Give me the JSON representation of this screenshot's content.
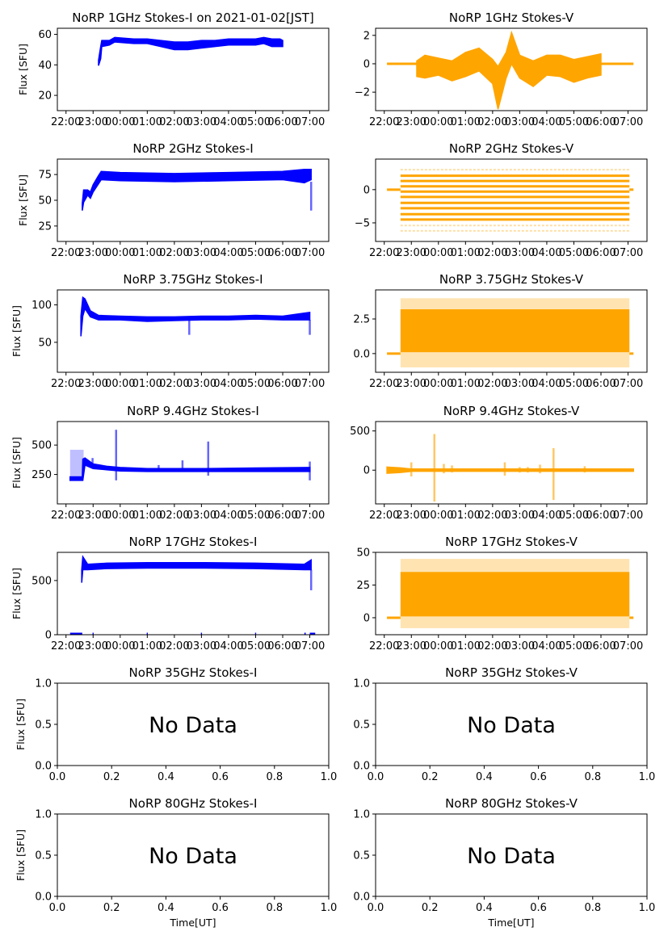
{
  "figure": {
    "ylabel": "Flux [SFU]",
    "xlabel": "Time[UT]",
    "no_data_text": "No Data",
    "colors": {
      "stokes_i": "#0000ff",
      "stokes_v": "#ffa500",
      "axis": "#000000"
    }
  },
  "chart_data": [
    {
      "id": "1ghz-i",
      "type": "scatter",
      "row": 0,
      "col": 0,
      "title": "NoRP 1GHz Stokes-I on 2021-01-02[JST]",
      "ylabel": "Flux [SFU]",
      "xlabel": "",
      "xaxis": "time",
      "xlim": [
        -0.32,
        9.7
      ],
      "xticks": [
        0,
        1,
        2,
        3,
        4,
        5,
        6,
        7,
        8,
        9
      ],
      "xticklabels": [
        "22:00",
        "23:00",
        "00:00",
        "01:00",
        "02:00",
        "03:00",
        "04:00",
        "05:00",
        "06:00",
        "07:00"
      ],
      "ylim": [
        10,
        64
      ],
      "yticks": [
        20,
        40,
        60
      ],
      "yticklabels": [
        "20",
        "40",
        "60"
      ],
      "color": "#0000ff",
      "envelope": [
        [
          1.2,
          39.5,
          43
        ],
        [
          1.28,
          44,
          52
        ],
        [
          1.32,
          52,
          56
        ],
        [
          1.6,
          53,
          56
        ],
        [
          1.8,
          55,
          58
        ],
        [
          2.5,
          54,
          57
        ],
        [
          3.0,
          54,
          57
        ],
        [
          3.5,
          52,
          56
        ],
        [
          4.0,
          50,
          55
        ],
        [
          4.5,
          50,
          55
        ],
        [
          5.0,
          51,
          56
        ],
        [
          5.5,
          52,
          56
        ],
        [
          6.0,
          53,
          57
        ],
        [
          6.5,
          53,
          57
        ],
        [
          7.0,
          53,
          57
        ],
        [
          7.3,
          54,
          58
        ],
        [
          7.6,
          52,
          57
        ],
        [
          7.9,
          52,
          57
        ],
        [
          8.0,
          52,
          56
        ]
      ]
    },
    {
      "id": "1ghz-v",
      "type": "scatter",
      "row": 0,
      "col": 1,
      "title": "NoRP 1GHz Stokes-V",
      "ylabel": "",
      "xlabel": "",
      "xaxis": "time",
      "xlim": [
        -0.32,
        9.7
      ],
      "xticks": [
        0,
        1,
        2,
        3,
        4,
        5,
        6,
        7,
        8,
        9
      ],
      "xticklabels": [
        "22:00",
        "23:00",
        "00:00",
        "01:00",
        "02:00",
        "03:00",
        "04:00",
        "05:00",
        "06:00",
        "07:00"
      ],
      "ylim": [
        -3.3,
        2.5
      ],
      "yticks": [
        -2,
        0,
        2
      ],
      "yticklabels": [
        "−2",
        "0",
        "2"
      ],
      "color": "#ffa500",
      "baseline": {
        "value": 0,
        "x": [
          [
            0.1,
            1.2
          ],
          [
            8.0,
            9.2
          ]
        ]
      },
      "envelope": [
        [
          1.2,
          -0.9,
          0.2
        ],
        [
          1.5,
          -1.0,
          0.6
        ],
        [
          2.0,
          -0.8,
          0.4
        ],
        [
          2.5,
          -1.2,
          0.2
        ],
        [
          3.0,
          -0.9,
          0.8
        ],
        [
          3.5,
          -0.5,
          1.1
        ],
        [
          4.0,
          -1.4,
          0.3
        ],
        [
          4.2,
          -3.2,
          -0.2
        ],
        [
          4.5,
          -1.0,
          0.8
        ],
        [
          4.7,
          0.0,
          2.2
        ],
        [
          5.0,
          -1.0,
          0.6
        ],
        [
          5.5,
          -1.6,
          0.2
        ],
        [
          6.0,
          -0.8,
          0.6
        ],
        [
          6.5,
          -0.9,
          0.6
        ],
        [
          7.0,
          -1.3,
          0.3
        ],
        [
          7.5,
          -1.0,
          0.5
        ],
        [
          8.0,
          -0.8,
          0.7
        ]
      ]
    },
    {
      "id": "2ghz-i",
      "type": "scatter",
      "row": 1,
      "col": 0,
      "title": "NoRP 2GHz Stokes-I",
      "ylabel": "Flux [SFU]",
      "xlabel": "",
      "xaxis": "time",
      "xlim": [
        -0.32,
        9.7
      ],
      "xticks": [
        0,
        1,
        2,
        3,
        4,
        5,
        6,
        7,
        8,
        9
      ],
      "xticklabels": [
        "22:00",
        "23:00",
        "00:00",
        "01:00",
        "02:00",
        "03:00",
        "04:00",
        "05:00",
        "06:00",
        "07:00"
      ],
      "ylim": [
        10,
        90
      ],
      "yticks": [
        25,
        50,
        75
      ],
      "yticklabels": [
        "25",
        "50",
        "75"
      ],
      "color": "#0000ff",
      "envelope": [
        [
          0.6,
          40,
          47
        ],
        [
          0.65,
          48,
          60
        ],
        [
          0.8,
          55,
          60
        ],
        [
          0.9,
          52,
          58
        ],
        [
          1.0,
          58,
          65
        ],
        [
          1.2,
          66,
          74
        ],
        [
          1.3,
          70,
          78
        ],
        [
          2.0,
          69,
          77
        ],
        [
          4.0,
          68,
          76
        ],
        [
          6.0,
          69,
          77
        ],
        [
          8.0,
          70,
          78
        ],
        [
          8.8,
          67,
          80
        ],
        [
          9.05,
          70,
          80
        ]
      ],
      "spikes": [
        [
          9.05,
          40,
          68
        ]
      ]
    },
    {
      "id": "2ghz-v",
      "type": "scatter",
      "row": 1,
      "col": 1,
      "title": "NoRP 2GHz Stokes-V",
      "ylabel": "",
      "xlabel": "",
      "xaxis": "time",
      "xlim": [
        -0.32,
        9.7
      ],
      "xticks": [
        0,
        1,
        2,
        3,
        4,
        5,
        6,
        7,
        8,
        9
      ],
      "xticklabels": [
        "22:00",
        "23:00",
        "00:00",
        "01:00",
        "02:00",
        "03:00",
        "04:00",
        "05:00",
        "06:00",
        "07:00"
      ],
      "ylim": [
        -7.8,
        4.6
      ],
      "yticks": [
        -5,
        0
      ],
      "yticklabels": [
        "−5",
        "0"
      ],
      "color": "#ffa500",
      "baseline": {
        "value": 0,
        "x": [
          [
            0.1,
            0.6
          ],
          [
            9.05,
            9.2
          ]
        ]
      },
      "x_range": [
        0.6,
        9.05
      ],
      "levels_strong": [
        2.1,
        1.3,
        0.5,
        -0.3,
        -1.1,
        -2.0,
        -2.8,
        -3.7,
        -4.5
      ],
      "levels_faint": [
        3.0,
        -5.4,
        -6.2
      ]
    },
    {
      "id": "3.75ghz-i",
      "type": "scatter",
      "row": 2,
      "col": 0,
      "title": "NoRP 3.75GHz Stokes-I",
      "ylabel": "Flux [SFU]",
      "xlabel": "",
      "xaxis": "time",
      "xlim": [
        -0.32,
        9.7
      ],
      "xticks": [
        0,
        1,
        2,
        3,
        4,
        5,
        6,
        7,
        8,
        9
      ],
      "xticklabels": [
        "22:00",
        "23:00",
        "00:00",
        "01:00",
        "02:00",
        "03:00",
        "04:00",
        "05:00",
        "06:00",
        "07:00"
      ],
      "ylim": [
        10,
        120
      ],
      "yticks": [
        50,
        100
      ],
      "yticklabels": [
        "50",
        "100"
      ],
      "color": "#0000ff",
      "envelope": [
        [
          0.55,
          58,
          85
        ],
        [
          0.62,
          85,
          110
        ],
        [
          0.7,
          95,
          108
        ],
        [
          0.9,
          84,
          92
        ],
        [
          1.2,
          80,
          86
        ],
        [
          2.0,
          80,
          85
        ],
        [
          3.0,
          78,
          84
        ],
        [
          4.0,
          79,
          84
        ],
        [
          5.0,
          80,
          85
        ],
        [
          6.0,
          80,
          85
        ],
        [
          7.0,
          81,
          86
        ],
        [
          8.0,
          80,
          85
        ],
        [
          9.0,
          80,
          90
        ]
      ],
      "spikes": [
        [
          4.55,
          60,
          80
        ],
        [
          9.0,
          60,
          80
        ]
      ]
    },
    {
      "id": "3.75ghz-v",
      "type": "scatter",
      "row": 2,
      "col": 1,
      "title": "NoRP 3.75GHz Stokes-V",
      "ylabel": "",
      "xlabel": "",
      "xaxis": "time",
      "xlim": [
        -0.32,
        9.7
      ],
      "xticks": [
        0,
        1,
        2,
        3,
        4,
        5,
        6,
        7,
        8,
        9
      ],
      "xticklabels": [
        "22:00",
        "23:00",
        "00:00",
        "01:00",
        "02:00",
        "03:00",
        "04:00",
        "05:00",
        "06:00",
        "07:00"
      ],
      "ylim": [
        -1.35,
        4.6
      ],
      "yticks": [
        0.0,
        2.5
      ],
      "yticklabels": [
        "0.0",
        "2.5"
      ],
      "color": "#ffa500",
      "baseline": {
        "value": 0,
        "x": [
          [
            0.1,
            0.6
          ],
          [
            9.05,
            9.2
          ]
        ]
      },
      "x_range": [
        0.6,
        9.05
      ],
      "band_strong": [
        0.1,
        3.2
      ],
      "band_faint": [
        -1.0,
        4.0
      ]
    },
    {
      "id": "9.4ghz-i",
      "type": "scatter",
      "row": 3,
      "col": 0,
      "title": "NoRP 9.4GHz Stokes-I",
      "ylabel": "Flux [SFU]",
      "xlabel": "",
      "xaxis": "time",
      "xlim": [
        -0.32,
        9.7
      ],
      "xticks": [
        0,
        1,
        2,
        3,
        4,
        5,
        6,
        7,
        8,
        9
      ],
      "xticklabels": [
        "22:00",
        "23:00",
        "00:00",
        "01:00",
        "02:00",
        "03:00",
        "04:00",
        "05:00",
        "06:00",
        "07:00"
      ],
      "ylim": [
        0,
        700
      ],
      "yticks": [
        250,
        500
      ],
      "yticklabels": [
        "250",
        "500"
      ],
      "color": "#0000ff",
      "envelope": [
        [
          0.15,
          200,
          230
        ],
        [
          0.6,
          200,
          230
        ],
        [
          0.62,
          200,
          380
        ],
        [
          0.7,
          330,
          390
        ],
        [
          1.0,
          300,
          340
        ],
        [
          1.5,
          290,
          320
        ],
        [
          2.0,
          280,
          310
        ],
        [
          3.0,
          275,
          300
        ],
        [
          5.0,
          275,
          300
        ],
        [
          7.0,
          275,
          305
        ],
        [
          9.0,
          275,
          310
        ]
      ],
      "scatter_region": [
        [
          0.15,
          0.65,
          200,
          460
        ]
      ],
      "spikes": [
        [
          0.98,
          300,
          390
        ],
        [
          1.85,
          200,
          630
        ],
        [
          3.42,
          280,
          330
        ],
        [
          4.3,
          280,
          370
        ],
        [
          5.25,
          240,
          530
        ],
        [
          9.0,
          200,
          360
        ]
      ]
    },
    {
      "id": "9.4ghz-v",
      "type": "scatter",
      "row": 3,
      "col": 1,
      "title": "NoRP 9.4GHz Stokes-V",
      "ylabel": "",
      "xlabel": "",
      "xaxis": "time",
      "xlim": [
        -0.32,
        9.7
      ],
      "xticks": [
        0,
        1,
        2,
        3,
        4,
        5,
        6,
        7,
        8,
        9
      ],
      "xticklabels": [
        "22:00",
        "23:00",
        "00:00",
        "01:00",
        "02:00",
        "03:00",
        "04:00",
        "05:00",
        "06:00",
        "07:00"
      ],
      "ylim": [
        -430,
        620
      ],
      "yticks": [
        0,
        500
      ],
      "yticklabels": [
        "0",
        "500"
      ],
      "color": "#ffa500",
      "envelope": [
        [
          0.1,
          -40,
          40
        ],
        [
          0.6,
          -30,
          30
        ],
        [
          1.0,
          -15,
          15
        ],
        [
          9.2,
          -15,
          15
        ]
      ],
      "spikes": [
        [
          1.0,
          -80,
          100
        ],
        [
          1.85,
          -400,
          460
        ],
        [
          2.2,
          -40,
          80
        ],
        [
          2.5,
          -30,
          60
        ],
        [
          4.45,
          -70,
          100
        ],
        [
          5.0,
          -30,
          40
        ],
        [
          5.3,
          -30,
          40
        ],
        [
          5.75,
          -40,
          70
        ],
        [
          6.25,
          -380,
          280
        ],
        [
          7.4,
          -30,
          50
        ]
      ]
    },
    {
      "id": "17ghz-i",
      "type": "scatter",
      "row": 4,
      "col": 0,
      "title": "NoRP 17GHz Stokes-I",
      "ylabel": "Flux [SFU]",
      "xlabel": "",
      "xaxis": "time",
      "xlim": [
        -0.32,
        9.7
      ],
      "xticks": [
        0,
        1,
        2,
        3,
        4,
        5,
        6,
        7,
        8,
        9
      ],
      "xticklabels": [
        "22:00",
        "23:00",
        "00:00",
        "01:00",
        "02:00",
        "03:00",
        "04:00",
        "05:00",
        "06:00",
        "07:00"
      ],
      "ylim": [
        0,
        760
      ],
      "yticks": [
        0,
        500
      ],
      "yticklabels": [
        "0",
        "500"
      ],
      "color": "#0000ff",
      "envelope": [
        [
          0.58,
          480,
          600
        ],
        [
          0.62,
          600,
          720
        ],
        [
          0.8,
          600,
          650
        ],
        [
          1.5,
          610,
          660
        ],
        [
          3.0,
          615,
          665
        ],
        [
          5.0,
          615,
          665
        ],
        [
          7.0,
          610,
          660
        ],
        [
          8.8,
          600,
          650
        ],
        [
          9.05,
          600,
          690
        ]
      ],
      "spikes": [
        [
          9.05,
          410,
          600
        ]
      ],
      "zero_marks": [
        [
          0.15,
          0.6
        ],
        [
          0.98,
          1.02
        ],
        [
          2.98,
          3.02
        ],
        [
          4.98,
          5.02
        ],
        [
          6.98,
          7.02
        ],
        [
          8.8,
          8.85
        ],
        [
          9.0,
          9.2
        ]
      ]
    },
    {
      "id": "17ghz-v",
      "type": "scatter",
      "row": 4,
      "col": 1,
      "title": "NoRP 17GHz Stokes-V",
      "ylabel": "",
      "xlabel": "",
      "xaxis": "time",
      "xlim": [
        -0.32,
        9.7
      ],
      "xticks": [
        0,
        1,
        2,
        3,
        4,
        5,
        6,
        7,
        8,
        9
      ],
      "xticklabels": [
        "22:00",
        "23:00",
        "00:00",
        "01:00",
        "02:00",
        "03:00",
        "04:00",
        "05:00",
        "06:00",
        "07:00"
      ],
      "ylim": [
        -13,
        50
      ],
      "yticks": [
        0,
        25,
        50
      ],
      "yticklabels": [
        "0",
        "25",
        "50"
      ],
      "color": "#ffa500",
      "baseline": {
        "value": 0,
        "x": [
          [
            0.1,
            0.6
          ],
          [
            9.05,
            9.2
          ]
        ]
      },
      "x_range": [
        0.6,
        9.05
      ],
      "band_strong": [
        1,
        35
      ],
      "band_faint": [
        -8,
        45
      ]
    },
    {
      "id": "35ghz-i",
      "type": "empty",
      "row": 5,
      "col": 0,
      "title": "NoRP 35GHz Stokes-I",
      "ylabel": "Flux [SFU]",
      "xlabel": "",
      "xaxis": "linear",
      "xlim": [
        0,
        1
      ],
      "xticks": [
        0,
        0.2,
        0.4,
        0.6,
        0.8,
        1.0
      ],
      "xticklabels": [
        "0.0",
        "0.2",
        "0.4",
        "0.6",
        "0.8",
        "1.0"
      ],
      "ylim": [
        0,
        1
      ],
      "yticks": [
        0,
        0.5,
        1
      ],
      "yticklabels": [
        "0.0",
        "0.5",
        "1.0"
      ],
      "annotation": "No Data"
    },
    {
      "id": "35ghz-v",
      "type": "empty",
      "row": 5,
      "col": 1,
      "title": "NoRP 35GHz Stokes-V",
      "ylabel": "",
      "xlabel": "",
      "xaxis": "linear",
      "xlim": [
        0,
        1
      ],
      "xticks": [
        0,
        0.2,
        0.4,
        0.6,
        0.8,
        1.0
      ],
      "xticklabels": [
        "0.0",
        "0.2",
        "0.4",
        "0.6",
        "0.8",
        "1.0"
      ],
      "ylim": [
        0,
        1
      ],
      "yticks": [
        0,
        0.5,
        1
      ],
      "yticklabels": [
        "0.0",
        "0.5",
        "1.0"
      ],
      "annotation": "No Data"
    },
    {
      "id": "80ghz-i",
      "type": "empty",
      "row": 6,
      "col": 0,
      "title": "NoRP 80GHz Stokes-I",
      "ylabel": "Flux [SFU]",
      "xlabel": "Time[UT]",
      "xaxis": "linear",
      "xlim": [
        0,
        1
      ],
      "xticks": [
        0,
        0.2,
        0.4,
        0.6,
        0.8,
        1.0
      ],
      "xticklabels": [
        "0.0",
        "0.2",
        "0.4",
        "0.6",
        "0.8",
        "1.0"
      ],
      "ylim": [
        0,
        1
      ],
      "yticks": [
        0,
        0.5,
        1
      ],
      "yticklabels": [
        "0.0",
        "0.5",
        "1.0"
      ],
      "annotation": "No Data"
    },
    {
      "id": "80ghz-v",
      "type": "empty",
      "row": 6,
      "col": 1,
      "title": "NoRP 80GHz Stokes-V",
      "ylabel": "",
      "xlabel": "Time[UT]",
      "xaxis": "linear",
      "xlim": [
        0,
        1
      ],
      "xticks": [
        0,
        0.2,
        0.4,
        0.6,
        0.8,
        1.0
      ],
      "xticklabels": [
        "0.0",
        "0.2",
        "0.4",
        "0.6",
        "0.8",
        "1.0"
      ],
      "ylim": [
        0,
        1
      ],
      "yticks": [
        0,
        0.5,
        1
      ],
      "yticklabels": [
        "0.0",
        "0.5",
        "1.0"
      ],
      "annotation": "No Data"
    }
  ]
}
